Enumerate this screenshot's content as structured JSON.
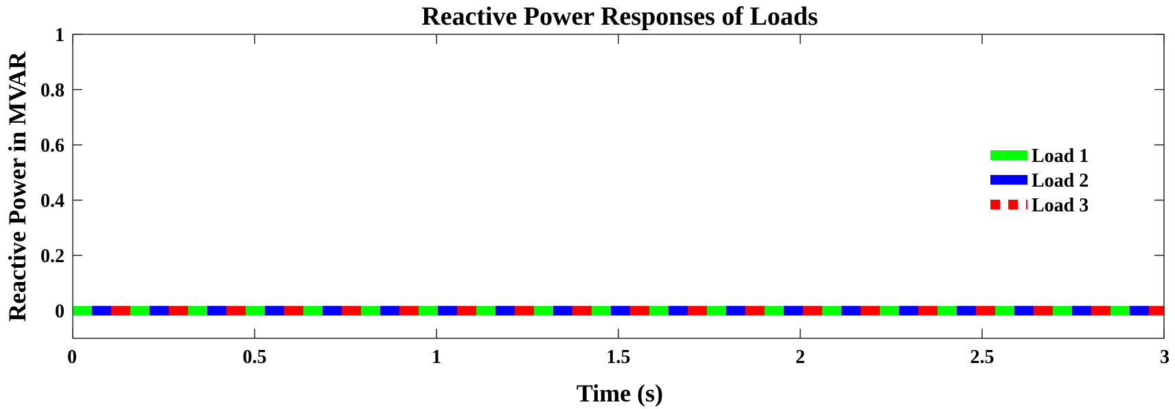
{
  "chart_data": {
    "type": "line",
    "title": "Reactive Power Responses of Loads",
    "xlabel": "Time (s)",
    "ylabel": "Reactive Power in MVAR",
    "xlim": [
      0,
      3
    ],
    "ylim": [
      -0.1,
      1
    ],
    "xticks": [
      "0",
      "0.5",
      "1",
      "1.5",
      "2",
      "2.5",
      "3"
    ],
    "yticks": [
      "0",
      "0.2",
      "0.4",
      "0.6",
      "0.8",
      "1"
    ],
    "grid": false,
    "legend_position": "right",
    "x": [
      0,
      3
    ],
    "series": [
      {
        "name": "Load 1",
        "values": [
          0,
          0
        ],
        "color": "#00ff00",
        "style": "solid"
      },
      {
        "name": "Load 2",
        "values": [
          0,
          0
        ],
        "color": "#0000ff",
        "style": "solid"
      },
      {
        "name": "Load 3",
        "values": [
          0,
          0
        ],
        "color": "#ff0000",
        "style": "dotted"
      }
    ]
  }
}
